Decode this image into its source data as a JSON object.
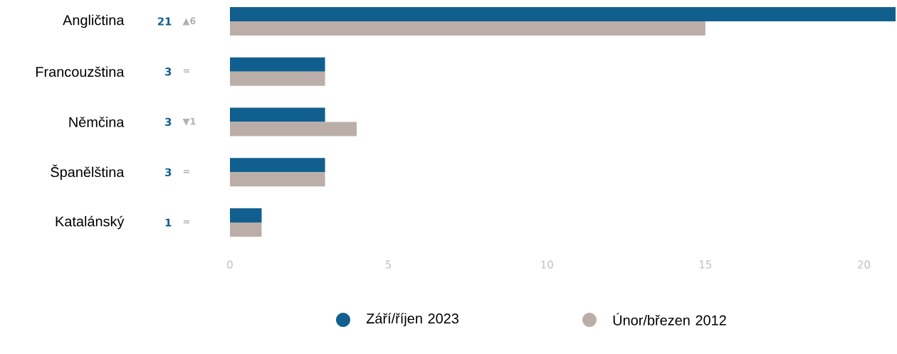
{
  "chart_data": {
    "type": "bar",
    "orientation": "horizontal",
    "categories": [
      "Angličtina",
      "Francouzština",
      "Němčina",
      "Španělština",
      "Katalánský"
    ],
    "series": [
      {
        "name": "Září/říjen 2023",
        "color": "#115f8e",
        "values": [
          21,
          3,
          3,
          3,
          1
        ],
        "value_labels": [
          "21",
          "3",
          "3",
          "3",
          "1"
        ]
      },
      {
        "name": "Únor/březen 2012",
        "color": "#bbaea8",
        "values": [
          15,
          3,
          4,
          3,
          1
        ]
      }
    ],
    "annotations": [
      "▲6",
      "=",
      "▼1",
      "=",
      "="
    ],
    "xlim": [
      0,
      21
    ],
    "xticks": [
      0,
      5,
      10,
      15,
      20
    ],
    "grid": false,
    "legend": "bottom"
  }
}
